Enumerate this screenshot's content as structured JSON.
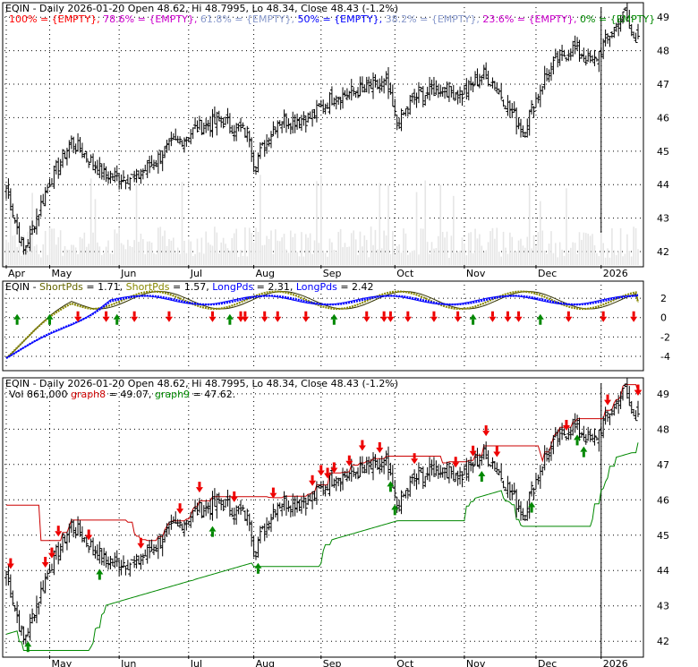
{
  "chart_data": [
    {
      "type": "candlestick",
      "title": "EQIN - Daily 2026-01-20 Open 48.62, Hi 48.7995, Lo 48.34, Close 48.43 (-1.2%)",
      "fib_legend": [
        {
          "text": "100% = {EMPTY},",
          "color": "#ff0000"
        },
        {
          "text": "78.6% = {EMPTY},",
          "color": "#cc00cc"
        },
        {
          "text": "61.8% = {EMPTY},",
          "color": "#8899cc"
        },
        {
          "text": "50% = {EMPTY},",
          "color": "#0000ff"
        },
        {
          "text": "38.2% = {EMPTY},",
          "color": "#8899cc"
        },
        {
          "text": "23.6% = {EMPTY},",
          "color": "#cc00cc"
        },
        {
          "text": "0% = {EMPTY}",
          "color": "#008800"
        }
      ],
      "ylim": [
        41.6,
        49.3
      ],
      "y_ticks": [
        42,
        43,
        44,
        45,
        46,
        47,
        48,
        49
      ],
      "x_tick_labels": [
        "Apr",
        "May",
        "Jun",
        "Jul",
        "Aug",
        "Sep",
        "Oct",
        "Nov",
        "Dec",
        "2026"
      ],
      "x_tick_bars": [
        0,
        20,
        52,
        84,
        114,
        145,
        179,
        211,
        244,
        274
      ],
      "x_tick_rules": [
        0,
        20,
        52,
        84,
        114,
        145,
        179,
        211,
        244,
        274
      ],
      "grid": true,
      "volume_bars": true,
      "series_anchors": {
        "bars": [
          0,
          8,
          20,
          30,
          45,
          60,
          75,
          88,
          100,
          112,
          114,
          125,
          140,
          150,
          162,
          175,
          180,
          188,
          200,
          210,
          220,
          225,
          238,
          248,
          255,
          262,
          270,
          278,
          285,
          288
        ],
        "close": [
          43.9,
          42.0,
          44.1,
          45.3,
          44.3,
          44.2,
          45.1,
          45.7,
          45.9,
          45.5,
          44.6,
          45.9,
          46.0,
          46.6,
          46.8,
          47.0,
          45.8,
          46.6,
          46.9,
          46.7,
          47.3,
          47.0,
          45.6,
          47.2,
          47.8,
          48.1,
          47.6,
          48.5,
          49.1,
          48.43
        ]
      },
      "last_bar": {
        "open": 48.62,
        "high": 48.7995,
        "low": 48.34,
        "close": 48.43
      }
    },
    {
      "type": "line",
      "title": "EQIN - ShortPds = 1.71, ShortPds = 1.57, LongPds = 2.31, LongPds = 2.42",
      "legend": [
        {
          "text": "EQIN -",
          "color": "#000000"
        },
        {
          "text": "ShortPds",
          "color": "#666600"
        },
        {
          "text": "= 1.71,",
          "color": "#000000"
        },
        {
          "text": "ShortPds",
          "color": "#888800"
        },
        {
          "text": "= 1.57,",
          "color": "#000000"
        },
        {
          "text": "LongPds",
          "color": "#0000ff"
        },
        {
          "text": "= 2.31,",
          "color": "#000000"
        },
        {
          "text": "LongPds",
          "color": "#0000ff"
        },
        {
          "text": "= 2.42",
          "color": "#000000"
        }
      ],
      "ylim": [
        -5.3,
        3.4
      ],
      "y_ticks": [
        2,
        0,
        -2,
        -4
      ],
      "series": [
        {
          "name": "ShortPds",
          "value": 1.71,
          "color": "#333300"
        },
        {
          "name": "ShortPds",
          "value": 1.57,
          "color": "#888800"
        },
        {
          "name": "LongPds",
          "value": 2.31,
          "color": "#0000ff"
        },
        {
          "name": "LongPds",
          "value": 2.42,
          "color": "#0000ff"
        }
      ],
      "buy_bars": [
        5,
        20,
        51,
        103,
        151,
        215,
        246
      ],
      "sell_bars": [
        33,
        46,
        59,
        75,
        95,
        108,
        110,
        119,
        125,
        138,
        166,
        174,
        177,
        185,
        197,
        208,
        224,
        231,
        236,
        259,
        275,
        289
      ]
    },
    {
      "type": "candlestick",
      "title": "EQIN - Daily 2026-01-20 Open 48.62, Hi 48.7995, Lo 48.34, Close 48.43 (-1.2%)",
      "legend": [
        {
          "text": "Vol 861,000",
          "color": "#000000"
        },
        {
          "text": "graph8",
          "color": "#cc0000"
        },
        {
          "text": "= 49.07,",
          "color": "#000000"
        },
        {
          "text": "graph9",
          "color": "#008800"
        },
        {
          "text": "= 47.62.",
          "color": "#000000"
        }
      ],
      "ylim": [
        41.6,
        49.3
      ],
      "y_ticks": [
        42,
        43,
        44,
        45,
        46,
        47,
        48,
        49
      ],
      "x_tick_labels": [
        "May",
        "Jun",
        "Jul",
        "Aug",
        "Sep",
        "Oct",
        "Nov",
        "Dec",
        "2026"
      ],
      "x_tick_bars": [
        20,
        52,
        84,
        114,
        145,
        179,
        211,
        244,
        274
      ],
      "x_tick_rules": [
        0,
        20,
        52,
        84,
        114,
        145,
        179,
        211,
        244,
        274
      ],
      "series": [
        {
          "name": "graph8",
          "value": 49.07,
          "color": "#cc0000"
        },
        {
          "name": "graph9",
          "value": 47.62,
          "color": "#008800"
        }
      ],
      "buy_bars": [
        10,
        43,
        95,
        116,
        177,
        179,
        219,
        242,
        263,
        266
      ],
      "sell_bars": [
        2,
        18,
        21,
        24,
        38,
        62,
        80,
        89,
        105,
        123,
        141,
        145,
        148,
        151,
        158,
        164,
        172,
        188,
        207,
        215,
        221,
        226,
        258,
        277,
        291,
        296,
        305,
        312
      ]
    }
  ],
  "brand_colors": {
    "up": "#008800",
    "down": "#ff0000",
    "long": "#0000ff",
    "shortA": "#333300",
    "shortB": "#888800"
  }
}
